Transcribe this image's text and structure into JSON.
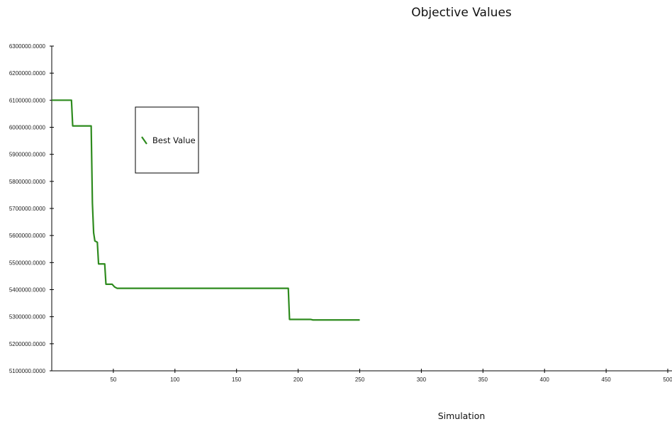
{
  "chart_data": {
    "type": "line",
    "title": "Objective Values",
    "xlabel": "Simulation",
    "ylabel": "",
    "xlim": [
      0,
      500
    ],
    "ylim": [
      5100000,
      6300000
    ],
    "x_ticks": [
      50,
      100,
      150,
      200,
      250,
      300,
      350,
      400,
      450,
      500
    ],
    "x_tick_labels": [
      "50",
      "100",
      "150",
      "200",
      "250",
      "300",
      "350",
      "400",
      "450",
      "500"
    ],
    "y_ticks": [
      5100000,
      5200000,
      5300000,
      5400000,
      5500000,
      5600000,
      5700000,
      5800000,
      5900000,
      6000000,
      6100000,
      6200000,
      6300000
    ],
    "y_tick_labels": [
      "5100000.0000",
      "5200000.0000",
      "5300000.0000",
      "5400000.0000",
      "5500000.0000",
      "5600000.0000",
      "5700000.0000",
      "5800000.0000",
      "5900000.0000",
      "6000000.0000",
      "6100000.0000",
      "6200000.0000",
      "6300000.0000"
    ],
    "grid": false,
    "legend": {
      "position": "top-left",
      "entries": [
        "Best Value"
      ]
    },
    "series": [
      {
        "name": "Best Value",
        "color": "#2e8b1e",
        "points": [
          [
            0,
            6100000
          ],
          [
            16,
            6100000
          ],
          [
            17,
            6005000
          ],
          [
            32,
            6005000
          ],
          [
            33,
            5720000
          ],
          [
            34,
            5610000
          ],
          [
            35,
            5580000
          ],
          [
            37,
            5575000
          ],
          [
            38,
            5495000
          ],
          [
            43,
            5495000
          ],
          [
            44,
            5420000
          ],
          [
            49,
            5420000
          ],
          [
            51,
            5410000
          ],
          [
            53,
            5405000
          ],
          [
            192,
            5405000
          ],
          [
            193,
            5290000
          ],
          [
            210,
            5290000
          ],
          [
            212,
            5288000
          ],
          [
            250,
            5288000
          ]
        ]
      }
    ]
  }
}
